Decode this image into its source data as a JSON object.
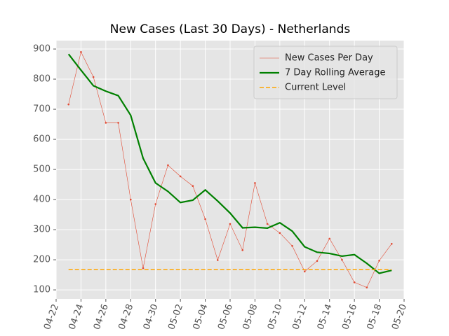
{
  "chart_data": {
    "type": "line",
    "title": "New Cases (Last 30 Days) - Netherlands",
    "x": [
      "04-23",
      "04-24",
      "04-25",
      "04-26",
      "04-27",
      "04-28",
      "04-29",
      "04-30",
      "05-01",
      "05-02",
      "05-03",
      "05-04",
      "05-05",
      "05-06",
      "05-07",
      "05-08",
      "05-09",
      "05-10",
      "05-11",
      "05-12",
      "05-13",
      "05-14",
      "05-15",
      "05-16",
      "05-17",
      "05-18",
      "05-19"
    ],
    "series": [
      {
        "name": "New Cases Per Day",
        "color": "#e24a33",
        "style": "thin-markers",
        "values": [
          716,
          890,
          807,
          655,
          655,
          400,
          172,
          385,
          514,
          477,
          445,
          335,
          199,
          319,
          232,
          455,
          319,
          289,
          246,
          161,
          196,
          270,
          200,
          125,
          108,
          197,
          253
        ]
      },
      {
        "name": "7 Day Rolling Average",
        "color": "#008000",
        "style": "thick",
        "values": [
          883,
          830,
          778,
          760,
          745,
          680,
          537,
          455,
          427,
          390,
          398,
          432,
          395,
          355,
          306,
          308,
          305,
          323,
          295,
          243,
          225,
          221,
          212,
          217,
          188,
          155,
          165
        ]
      }
    ],
    "hline": {
      "name": "Current Level",
      "color": "#ffa500",
      "value": 167
    },
    "xlim": [
      "04-22",
      "05-20"
    ],
    "xticks": [
      "04-22",
      "04-24",
      "04-26",
      "04-28",
      "04-30",
      "05-02",
      "05-04",
      "05-06",
      "05-08",
      "05-10",
      "05-12",
      "05-14",
      "05-16",
      "05-18",
      "05-20"
    ],
    "ylim": [
      70,
      928
    ],
    "yticks": [
      100,
      200,
      300,
      400,
      500,
      600,
      700,
      800,
      900
    ],
    "grid": true,
    "legend": "upper right"
  }
}
